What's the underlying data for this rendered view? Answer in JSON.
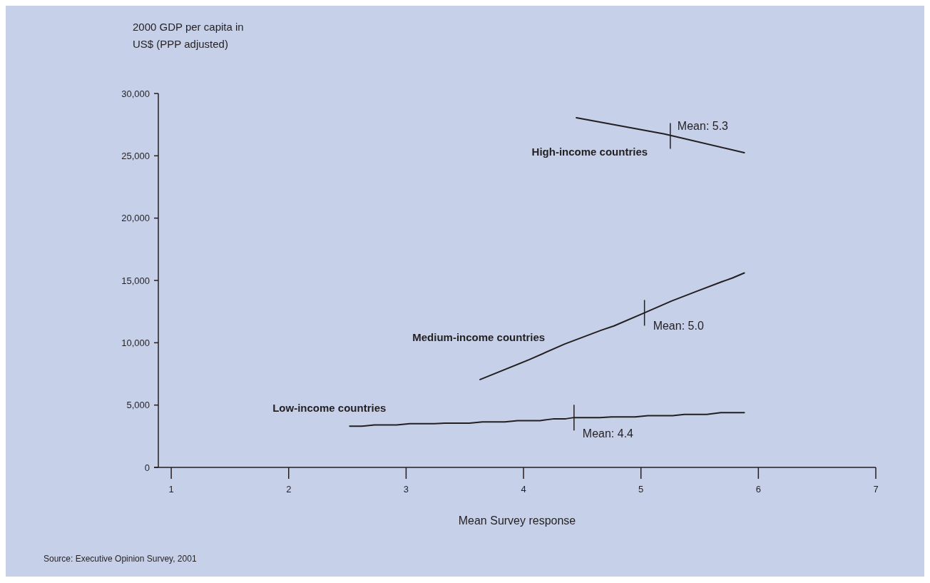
{
  "chart_data": {
    "type": "line",
    "ylabel": "2000 GDP per capita in US$ (PPP adjusted)",
    "xlabel": "Mean Survey response",
    "xlim": [
      0.89,
      7
    ],
    "xticks": [
      1,
      2,
      3,
      4,
      5,
      6,
      7
    ],
    "ylim": [
      0,
      30000
    ],
    "yticks": [
      {
        "value": 0,
        "label": "0"
      },
      {
        "value": 5000,
        "label": "5,000"
      },
      {
        "value": 10000,
        "label": "10,000"
      },
      {
        "value": 15000,
        "label": "15,000"
      },
      {
        "value": 20000,
        "label": "20,000"
      },
      {
        "value": 25000,
        "label": "25,000"
      },
      {
        "value": 30000,
        "label": "30,000"
      }
    ],
    "grid": false,
    "marker": "none",
    "line_style": "solid",
    "series": [
      {
        "name": "High-income countries",
        "color": "#231f20",
        "x": [
          4.45,
          5.2,
          5.88
        ],
        "values": [
          28050,
          26750,
          25250
        ]
      },
      {
        "name": "Medium-income countries",
        "color": "#231f20",
        "x": [
          3.63,
          4.05,
          4.35,
          4.66,
          4.77,
          5.03,
          5.26,
          5.48,
          5.69,
          5.78,
          5.88
        ],
        "values": [
          7050,
          8650,
          9900,
          11000,
          11350,
          12400,
          13350,
          14150,
          14900,
          15200,
          15600
        ]
      },
      {
        "name": "Low-income countries",
        "color": "#231f20",
        "x": [
          2.52,
          2.62,
          2.73,
          2.92,
          3.03,
          3.24,
          3.33,
          3.54,
          3.65,
          3.84,
          3.95,
          4.14,
          4.26,
          4.36,
          4.43,
          4.65,
          4.75,
          4.95,
          5.06,
          5.27,
          5.37,
          5.56,
          5.68,
          5.88
        ],
        "values": [
          3300,
          3300,
          3400,
          3400,
          3500,
          3500,
          3550,
          3550,
          3650,
          3650,
          3750,
          3750,
          3900,
          3900,
          4000,
          4000,
          4050,
          4050,
          4150,
          4150,
          4250,
          4250,
          4400,
          4400
        ]
      }
    ],
    "annotations": [
      {
        "text": "Mean: 5.3",
        "x": 5.25,
        "y": 26600
      },
      {
        "text": "Mean: 5.0",
        "x": 5.03,
        "y": 12400
      },
      {
        "text": "Mean: 4.4",
        "x": 4.43,
        "y": 4000
      },
      "Source: Executive Opinion Survey, 2001"
    ]
  }
}
